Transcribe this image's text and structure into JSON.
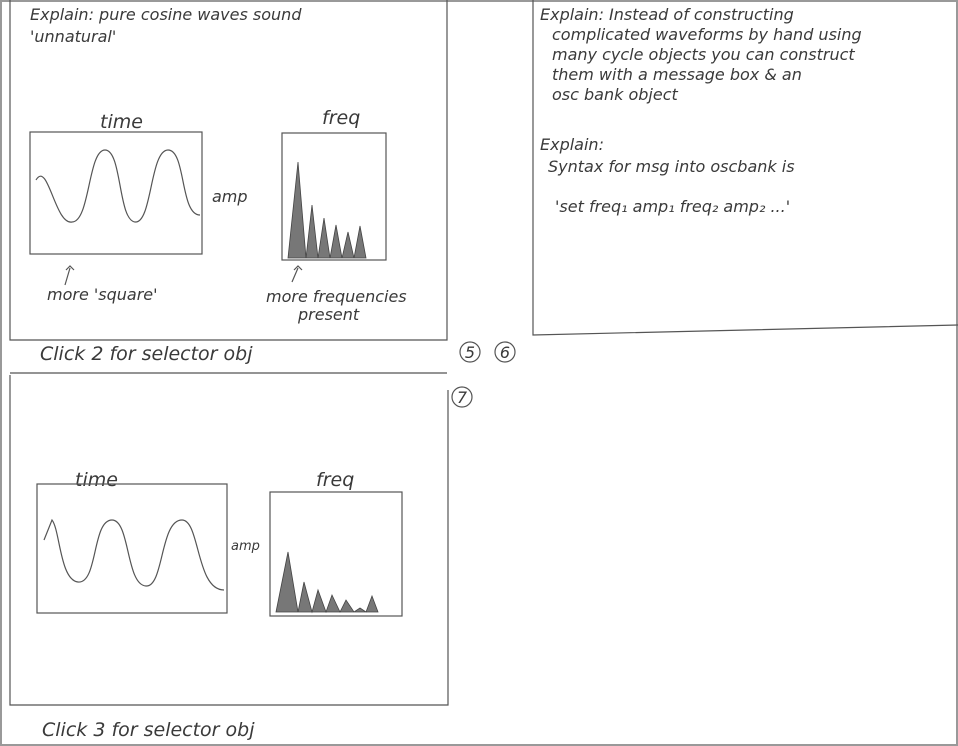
{
  "panels": [
    {
      "number": "5",
      "heading": [
        "Explain: pure cosine waves sound",
        "'unnatural'"
      ],
      "time_label": "time",
      "freq_label": "freq",
      "amp_label": "amp",
      "annotations": [
        "more 'square'",
        "more frequencies",
        "present"
      ],
      "footer": "Click 2 for selector obj"
    },
    {
      "number": "6",
      "paragraph_1": [
        "Explain: Instead of constructing",
        "complicated waveforms by hand using",
        "many cycle objects you can construct",
        "them with a message box & an",
        "osc bank object"
      ],
      "paragraph_2": [
        "Explain:",
        "Syntax for msg into oscbank is"
      ],
      "syntax": "'set freq₁ amp₁ freq₂ amp₂ ...'"
    },
    {
      "number": "7",
      "time_label": "time",
      "freq_label": "freq",
      "amp_label": "amp",
      "footer": "Click 3 for selector obj"
    }
  ]
}
